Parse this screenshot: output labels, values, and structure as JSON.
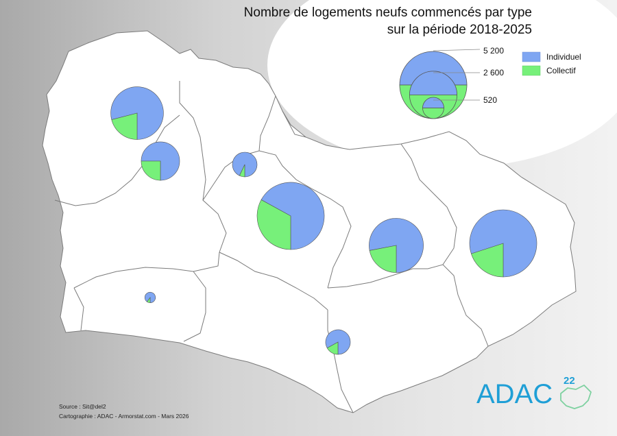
{
  "title_line1": "Nombre de logements neufs commencés par type",
  "title_line2": "sur la période 2018-2025",
  "legend": {
    "individuel": "Individuel",
    "collectif": "Collectif",
    "colors": {
      "individuel": "#7fa6f2",
      "collectif": "#77f07a"
    },
    "size_values": [
      "5 200",
      "2 600",
      "520"
    ]
  },
  "source": "Source : Sit@del2",
  "cartographie": "Cartographie : ADAC - Armorstat.com - Mars 2026",
  "logo": {
    "text": "ADAC",
    "number": "22"
  },
  "pies": [
    {
      "name": "pie-northwest",
      "total": 3200,
      "collectif_share": 0.21
    },
    {
      "name": "pie-west",
      "total": 1700,
      "collectif_share": 0.25
    },
    {
      "name": "pie-north-center",
      "total": 700,
      "collectif_share": 0.07
    },
    {
      "name": "pie-center",
      "total": 5200,
      "collectif_share": 0.33
    },
    {
      "name": "pie-east-center",
      "total": 3400,
      "collectif_share": 0.22
    },
    {
      "name": "pie-east",
      "total": 5200,
      "collectif_share": 0.2
    },
    {
      "name": "pie-southwest",
      "total": 130,
      "collectif_share": 0.1
    },
    {
      "name": "pie-south",
      "total": 700,
      "collectif_share": 0.17
    }
  ]
}
